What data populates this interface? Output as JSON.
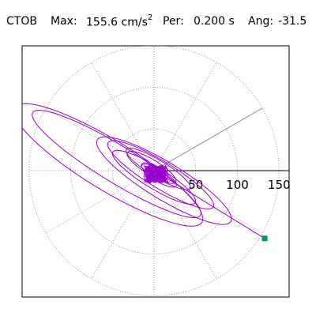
{
  "header": {
    "station": "CTOB",
    "max_label": "Max:",
    "max_value": "155.6 cm/s",
    "max_exponent": "2",
    "period_label": "Per:",
    "period_value": "0.200 s",
    "angle_label": "Ang:",
    "angle_value": "-31.5"
  },
  "chart_data": {
    "type": "polar-orbit",
    "radial_ticks": [
      50,
      100,
      150
    ],
    "radial_range": [
      0,
      160
    ],
    "max_amplitude": 155.6,
    "period_s": 0.2,
    "angle_deg": -31.5,
    "angular_grid_step_deg": 30,
    "grid": true,
    "marker": {
      "x": 132.7,
      "y": -81.3,
      "color": "#009966"
    },
    "orbit_color": "#9900cc",
    "guide_line_angle_deg": 30
  }
}
